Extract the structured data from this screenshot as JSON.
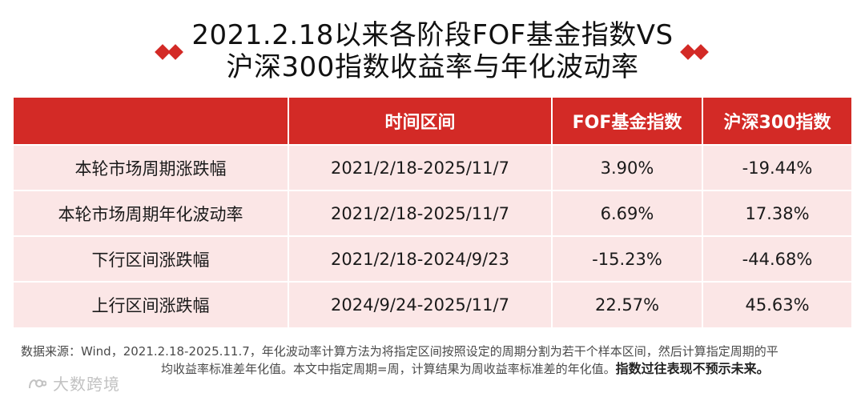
{
  "title": {
    "line1": "2021.2.18以来各阶段FOF基金指数VS",
    "line2": "沪深300指数收益率与年化波动率",
    "accent_color": "#d32a26"
  },
  "table": {
    "headers": [
      "",
      "时间区间",
      "FOF基金指数",
      "沪深300指数"
    ],
    "rows": [
      [
        "本轮市场周期涨跌幅",
        "2021/2/18-2025/11/7",
        "3.90%",
        "-19.44%"
      ],
      [
        "本轮市场周期年化波动率",
        "2021/2/18-2025/11/7",
        "6.69%",
        "17.38%"
      ],
      [
        "下行区间涨跌幅",
        "2021/2/18-2024/9/23",
        "-15.23%",
        "-44.68%"
      ],
      [
        "上行区间涨跌幅",
        "2024/9/24-2025/11/7",
        "22.57%",
        "45.63%"
      ]
    ],
    "header_color": "#d32a26",
    "row_color": "#fbe6e6"
  },
  "note": {
    "line1": "数据来源：Wind，2021.2.18-2025.11.7，年化波动率计算方法为将指定区间按照设定的周期分割为若干个样本区间，然后计算指定周期的平",
    "line2_normal": "均收益率标准差年化值。本文中指定周期=周，计算结果为周收益率标准差的年化值。",
    "line2_bold": "指数过往表现不预示未来。"
  },
  "watermark": {
    "icon": "logo-icon",
    "text": "大数跨境"
  }
}
